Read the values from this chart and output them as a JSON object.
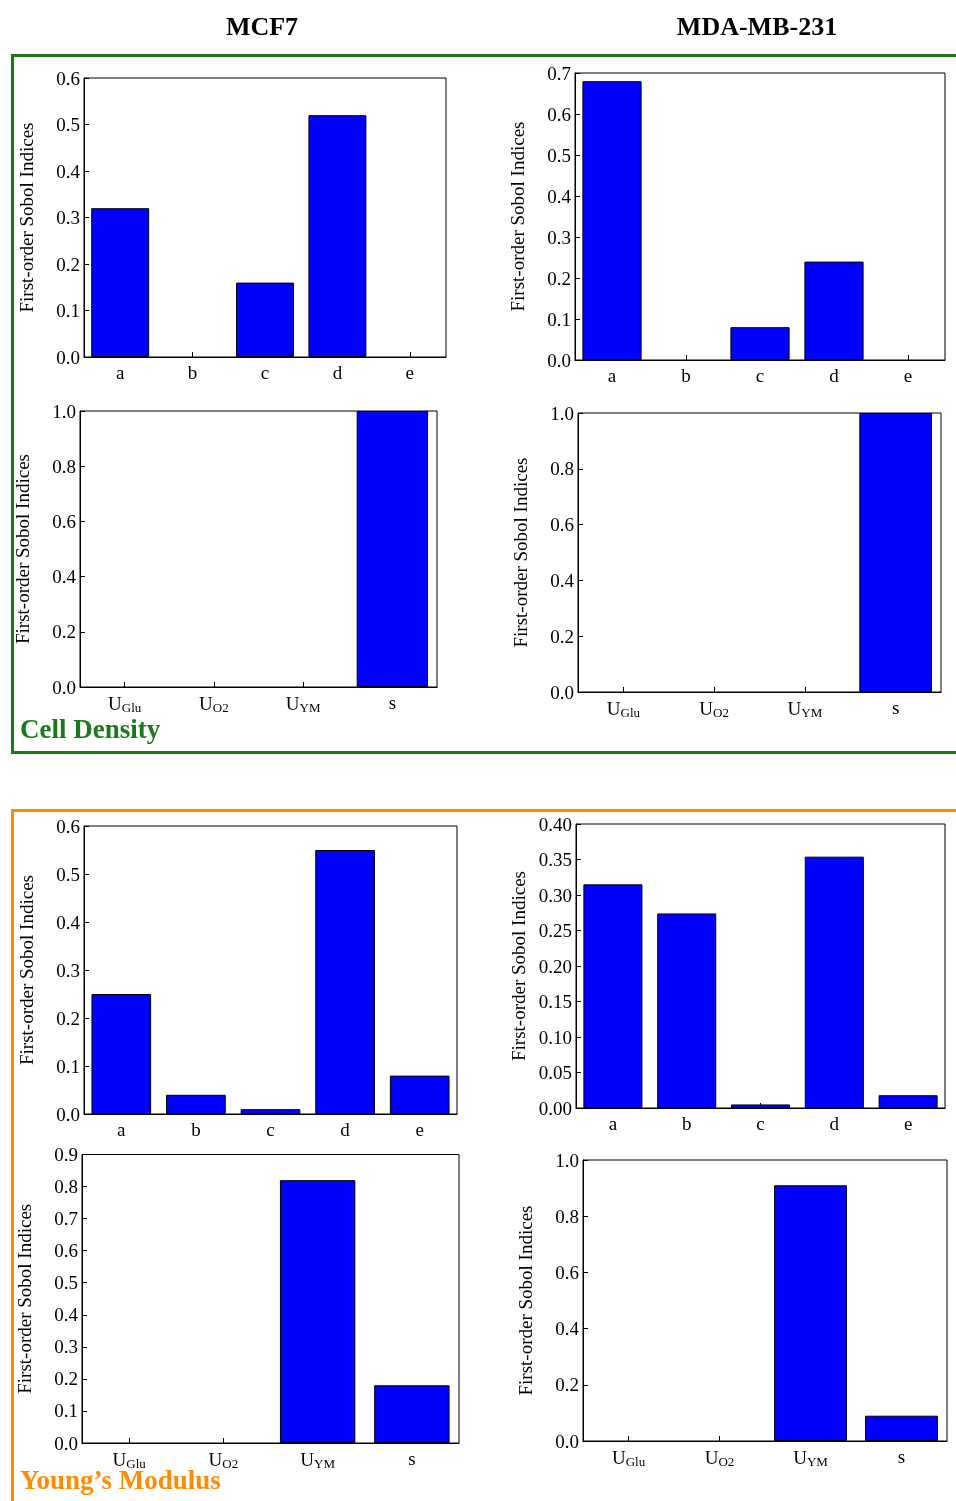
{
  "chart_data": [
    {
      "type": "bar",
      "title": "MCF7",
      "ylabel": "First-order Sobol Indices",
      "categories": [
        "a",
        "b",
        "c",
        "d",
        "e"
      ],
      "values": [
        0.32,
        0,
        0.16,
        0.52,
        0
      ],
      "color": "#0000ff",
      "ylim": [
        0,
        0.6
      ],
      "yticks": [
        {
          "value": 0,
          "label": "0.0"
        },
        0.1,
        0.2,
        0.3,
        0.4,
        0.5,
        0.6
      ],
      "grid": false
    },
    {
      "type": "bar",
      "title": "MDA-MB-231",
      "ylabel": "First-order Sobol Indices",
      "categories": [
        "a",
        "b",
        "c",
        "d",
        "e"
      ],
      "values": [
        0.68,
        0,
        0.08,
        0.24,
        0
      ],
      "color": "#0000ff",
      "ylim": [
        0,
        0.7
      ],
      "yticks": [
        {
          "value": 0,
          "label": "0.0"
        },
        0.1,
        0.2,
        0.3,
        0.4,
        0.5,
        0.6,
        0.7
      ],
      "grid": false
    },
    {
      "type": "bar",
      "ylabel": "First-order Sobol Indices",
      "categories": [
        "U$_{Glu}$",
        "U$_{O2}$",
        "U$_{YM}$",
        "s"
      ],
      "values": [
        0,
        0,
        0,
        1.0
      ],
      "color": "#0000ff",
      "ylim": [
        0,
        1.0
      ],
      "yticks": [
        {
          "value": 0,
          "label": "0.0"
        },
        0.2,
        0.4,
        0.6,
        0.8,
        {
          "value": 1,
          "label": "1.0"
        }
      ],
      "grid": false,
      "annotations": [
        "Cell Density"
      ]
    },
    {
      "type": "bar",
      "ylabel": "First-order Sobol Indices",
      "categories": [
        "U$_{Glu}$",
        "U$_{O2}$",
        "U$_{YM}$",
        "s"
      ],
      "values": [
        0,
        0,
        0,
        1.0
      ],
      "color": "#0000ff",
      "ylim": [
        0,
        1.0
      ],
      "yticks": [
        {
          "value": 0,
          "label": "0.0"
        },
        0.2,
        0.4,
        0.6,
        0.8,
        {
          "value": 1,
          "label": "1.0"
        }
      ],
      "grid": false
    },
    {
      "type": "bar",
      "ylabel": "First-order Sobol Indices",
      "categories": [
        "a",
        "b",
        "c",
        "d",
        "e"
      ],
      "values": [
        0.25,
        0.04,
        0.01,
        0.55,
        0.08
      ],
      "color": "#0000ff",
      "ylim": [
        0,
        0.6
      ],
      "yticks": [
        {
          "value": 0,
          "label": "0.0"
        },
        0.1,
        0.2,
        0.3,
        0.4,
        0.5,
        0.6
      ],
      "grid": false
    },
    {
      "type": "bar",
      "ylabel": "First-order Sobol Indices",
      "categories": [
        "a",
        "b",
        "c",
        "d",
        "e"
      ],
      "values": [
        0.315,
        0.274,
        0.005,
        0.354,
        0.018
      ],
      "color": "#0000ff",
      "ylim": [
        0,
        0.4
      ],
      "yticks": [
        {
          "value": 0,
          "label": "0.00"
        },
        0.05,
        {
          "value": 0.1,
          "label": "0.10"
        },
        0.15,
        {
          "value": 0.2,
          "label": "0.20"
        },
        0.25,
        {
          "value": 0.3,
          "label": "0.30"
        },
        0.35,
        {
          "value": 0.4,
          "label": "0.40"
        }
      ],
      "grid": false
    },
    {
      "type": "bar",
      "ylabel": "First-order Sobol Indices",
      "categories": [
        "U$_{Glu}$",
        "U$_{O2}$",
        "U$_{YM}$",
        "s"
      ],
      "values": [
        0,
        0,
        0.82,
        0.18
      ],
      "color": "#0000ff",
      "ylim": [
        0,
        0.9
      ],
      "yticks": [
        {
          "value": 0,
          "label": "0.0"
        },
        0.1,
        0.2,
        0.3,
        0.4,
        0.5,
        0.6,
        0.7,
        0.8,
        0.9
      ],
      "grid": false,
      "annotations": [
        "Young’s Modulus"
      ]
    },
    {
      "type": "bar",
      "ylabel": "First-order Sobol Indices",
      "categories": [
        "U$_{Glu}$",
        "U$_{O2}$",
        "U$_{YM}$",
        "s"
      ],
      "values": [
        0,
        0,
        0.91,
        0.09
      ],
      "color": "#0000ff",
      "ylim": [
        0,
        1.0
      ],
      "yticks": [
        {
          "value": 0,
          "label": "0.0"
        },
        0.2,
        0.4,
        0.6,
        0.8,
        {
          "value": 1,
          "label": "1.0"
        }
      ],
      "grid": false
    }
  ]
}
